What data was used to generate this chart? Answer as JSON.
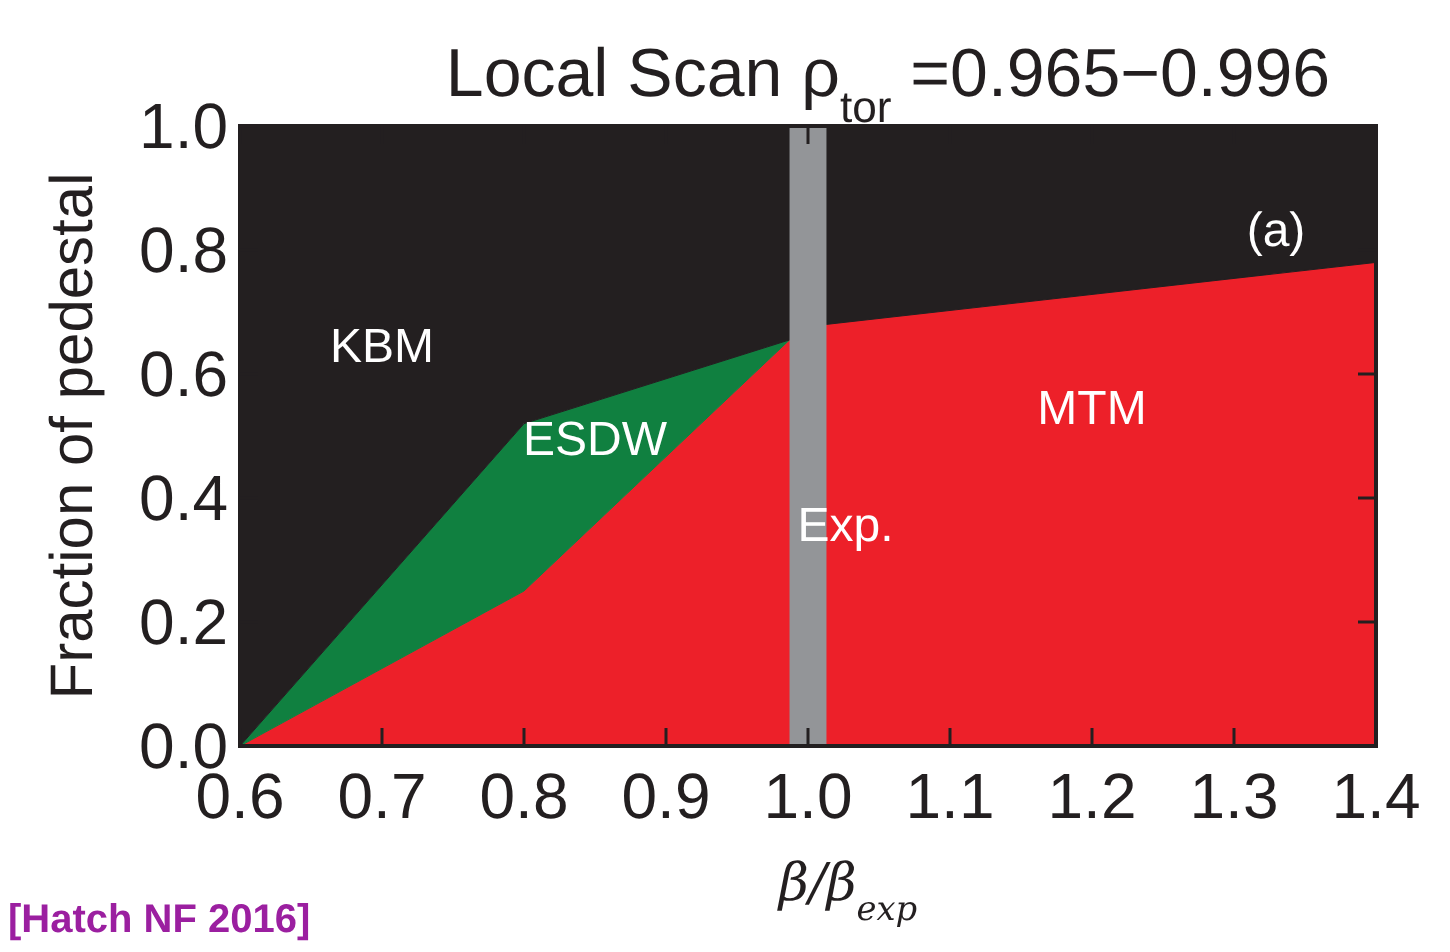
{
  "chart_data": {
    "type": "area",
    "stacked": true,
    "title": "Local Scan  ρ$_{tor}$ =0.965−0.996",
    "xlabel": "β/β$_{exp}$",
    "ylabel": "Fraction of pedestal",
    "x": [
      0.6,
      0.8,
      0.987,
      1.013,
      1.4
    ],
    "series": [
      {
        "name": "MTM",
        "color": "#ed2029",
        "values": [
          0,
          0.25,
          0.655,
          0.68,
          0.78
        ]
      },
      {
        "name": "ESDW",
        "color": "#108040",
        "values": [
          0,
          0.27,
          0,
          null,
          null
        ]
      },
      {
        "name": "KBM",
        "color": "#231f20",
        "values": [
          1,
          0.48,
          0.345,
          0.32,
          0.22
        ]
      }
    ],
    "bands": [
      {
        "axis": "x",
        "from": 0.987,
        "to": 1.013,
        "label": "Exp.",
        "color": "#939598"
      }
    ],
    "xlim": [
      0.6,
      1.4
    ],
    "ylim": [
      0,
      1
    ],
    "xticks": [
      0.6,
      0.7,
      0.8,
      0.9,
      {
        "value": 1,
        "label": "1.0"
      },
      1.1,
      1.2,
      1.3,
      1.4
    ],
    "yticks": [
      {
        "value": 0,
        "label": "0.0"
      },
      0.2,
      0.4,
      0.6,
      0.8,
      {
        "value": 1,
        "label": "1.0"
      }
    ],
    "annotations": [
      "(a)",
      "[Hatch NF 2016]"
    ],
    "grid": false
  }
}
